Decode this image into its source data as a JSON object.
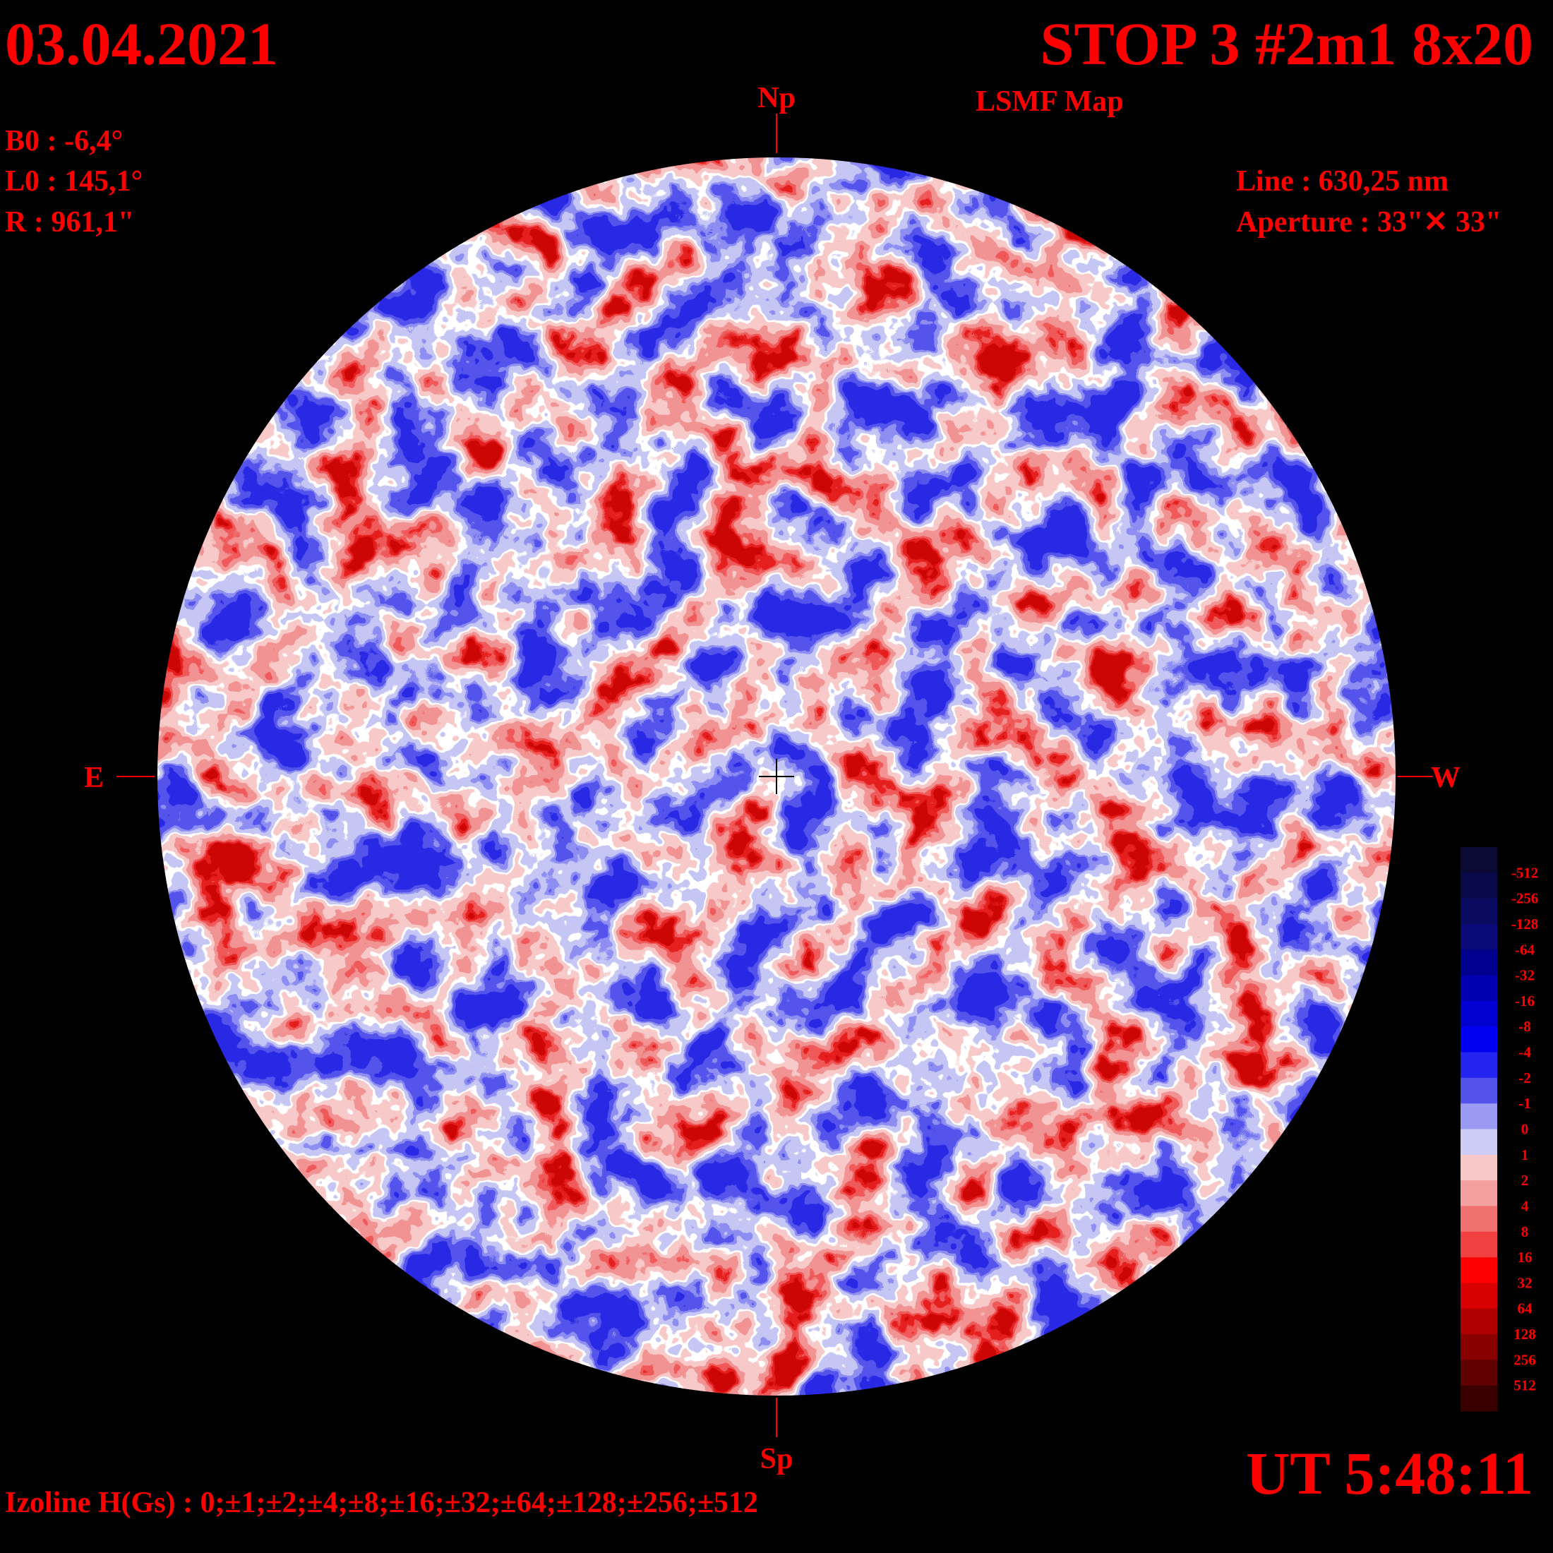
{
  "header": {
    "date": "03.04.2021",
    "title": "STOP 3 #2m1 8x20",
    "subtitle": "LSMF  Map",
    "time": "UT 5:48:11"
  },
  "params": [
    "B0 : -6,4°",
    "L0 : 145,1°",
    "R  : 961,1\""
  ],
  "instrument": [
    "Line :  630,25 nm",
    "Aperture : 33\"✕ 33\""
  ],
  "directions": {
    "north": "Np",
    "south": "Sp",
    "east": "E",
    "west": "W"
  },
  "footer": "Izoline H(Gs) : 0;±1;±2;±4;±8;±16;±32;±64;±128;±256;±512",
  "legend": {
    "labels": [
      -512,
      -256,
      -128,
      -64,
      -32,
      -16,
      -8,
      -4,
      -2,
      -1,
      0,
      1,
      2,
      4,
      8,
      16,
      32,
      64,
      128,
      256,
      512
    ],
    "colors": [
      "#0a0a35",
      "#0a0a4a",
      "#0a0a60",
      "#0a0a78",
      "#00008f",
      "#0000b0",
      "#0000d0",
      "#0000f0",
      "#2424f0",
      "#5252ea",
      "#9a9af2",
      "#ccccf6",
      "#f8c8c8",
      "#f4a0a0",
      "#f07070",
      "#f04040",
      "#ff0000",
      "#d80000",
      "#b00000",
      "#880000",
      "#600000",
      "#3a0000"
    ]
  }
}
